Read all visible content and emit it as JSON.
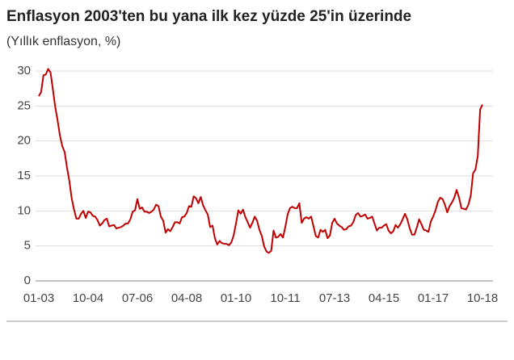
{
  "chart_data": {
    "type": "line",
    "title": "Enflasyon 2003'ten bu yana ilk kez yüzde 25'in üzerinde",
    "subtitle": "(Yıllık enflasyon, %)",
    "categories": [
      "01-03",
      null,
      null,
      null,
      null,
      null,
      null,
      null,
      null,
      null,
      null,
      null,
      null,
      null,
      null,
      null,
      null,
      null,
      null,
      null,
      null,
      "10-04",
      null,
      null,
      null,
      null,
      null,
      null,
      null,
      null,
      null,
      null,
      null,
      null,
      null,
      null,
      null,
      null,
      null,
      null,
      null,
      null,
      "07-06",
      null,
      null,
      null,
      null,
      null,
      null,
      null,
      null,
      null,
      null,
      null,
      null,
      null,
      null,
      null,
      null,
      null,
      null,
      null,
      null,
      "04-08",
      null,
      null,
      null,
      null,
      null,
      null,
      null,
      null,
      null,
      null,
      null,
      null,
      null,
      null,
      null,
      null,
      null,
      null,
      null,
      null,
      "01-10",
      null,
      null,
      null,
      null,
      null,
      null,
      null,
      null,
      null,
      null,
      null,
      null,
      null,
      null,
      null,
      null,
      null,
      null,
      null,
      null,
      "10-11",
      null,
      null,
      null,
      null,
      null,
      null,
      null,
      null,
      null,
      null,
      null,
      null,
      null,
      null,
      null,
      null,
      null,
      null,
      null,
      null,
      "07-13",
      null,
      null,
      null,
      null,
      null,
      null,
      null,
      null,
      null,
      null,
      null,
      null,
      null,
      null,
      null,
      null,
      null,
      null,
      null,
      null,
      "04-15",
      null,
      null,
      null,
      null,
      null,
      null,
      null,
      null,
      null,
      null,
      null,
      null,
      null,
      null,
      null,
      null,
      null,
      null,
      null,
      null,
      "01-17",
      null,
      null,
      null,
      null,
      null,
      null,
      null,
      null,
      null,
      null,
      null,
      null,
      null,
      null,
      null,
      null,
      null,
      null,
      null,
      null,
      "10-18"
    ],
    "values": [
      26.4,
      27.0,
      29.4,
      29.5,
      30.3,
      29.8,
      27.4,
      24.9,
      23.0,
      20.8,
      19.3,
      18.4,
      16.2,
      14.3,
      11.8,
      10.2,
      8.9,
      8.9,
      9.6,
      10.0,
      9.0,
      9.9,
      9.8,
      9.3,
      9.2,
      8.7,
      7.9,
      8.2,
      8.7,
      8.9,
      7.8,
      7.9,
      8.0,
      7.5,
      7.6,
      7.7,
      7.9,
      8.2,
      8.2,
      8.8,
      9.9,
      10.1,
      11.7,
      10.3,
      10.5,
      9.9,
      9.9,
      9.7,
      9.9,
      10.2,
      10.9,
      10.7,
      9.2,
      8.6,
      6.9,
      7.4,
      7.1,
      7.7,
      8.4,
      8.4,
      8.2,
      9.1,
      9.2,
      9.7,
      10.7,
      10.6,
      12.1,
      11.8,
      11.1,
      12.0,
      10.8,
      10.1,
      9.5,
      7.7,
      7.9,
      6.1,
      5.2,
      5.7,
      5.4,
      5.3,
      5.3,
      5.1,
      5.5,
      6.5,
      8.2,
      10.1,
      9.6,
      10.2,
      9.1,
      8.4,
      7.6,
      8.3,
      9.2,
      8.6,
      7.3,
      6.4,
      4.9,
      4.2,
      4.0,
      4.3,
      7.2,
      6.2,
      6.3,
      6.7,
      6.2,
      7.7,
      9.5,
      10.4,
      10.6,
      10.4,
      10.4,
      11.1,
      8.3,
      8.9,
      9.1,
      8.9,
      9.2,
      7.8,
      6.4,
      6.2,
      7.3,
      7.0,
      7.3,
      6.1,
      6.5,
      8.3,
      8.9,
      8.2,
      7.9,
      7.7,
      7.3,
      7.4,
      7.8,
      7.9,
      8.4,
      9.4,
      9.7,
      9.2,
      9.3,
      9.5,
      8.9,
      9.0,
      9.2,
      8.2,
      7.2,
      7.6,
      7.6,
      7.9,
      8.1,
      7.2,
      6.8,
      7.1,
      8.0,
      7.6,
      8.1,
      8.8,
      9.6,
      8.8,
      7.5,
      6.6,
      6.6,
      7.6,
      8.8,
      8.1,
      7.3,
      7.2,
      7.0,
      8.5,
      9.2,
      10.1,
      11.3,
      11.9,
      11.7,
      10.9,
      9.8,
      10.7,
      11.2,
      11.9,
      13.0,
      11.9,
      10.4,
      10.3,
      10.2,
      10.9,
      12.2,
      15.4,
      15.9,
      17.9,
      24.5,
      25.2
    ],
    "color": "#c00000",
    "ylim": [
      0,
      30
    ],
    "yticks": [
      0,
      5,
      10,
      15,
      20,
      25,
      30
    ],
    "grid": true
  }
}
